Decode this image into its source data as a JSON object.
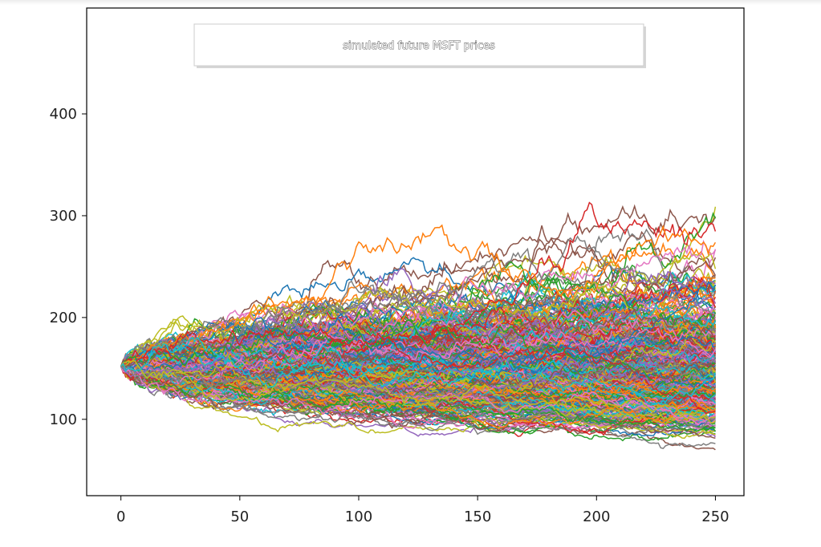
{
  "chart_data": {
    "type": "line",
    "title": "",
    "xlabel": "",
    "ylabel": "",
    "legend": {
      "label": "simulated future MSFT prices",
      "placement": "top-center"
    },
    "xlim": [
      -14.4,
      262
    ],
    "ylim": [
      25,
      504
    ],
    "x_ticks": [
      0,
      50,
      100,
      150,
      200,
      250
    ],
    "y_ticks": [
      100,
      200,
      300,
      400
    ],
    "start_value": 152,
    "num_steps": 250,
    "num_simulations": 500,
    "daily_volatility": 0.0165,
    "series_colors": [
      "#1f77b4",
      "#ff7f0e",
      "#2ca02c",
      "#d62728",
      "#9467bd",
      "#8c564b",
      "#e377c2",
      "#7f7f7f",
      "#bcbd22",
      "#17becf"
    ],
    "frame_color": "#000000",
    "grid": false
  }
}
